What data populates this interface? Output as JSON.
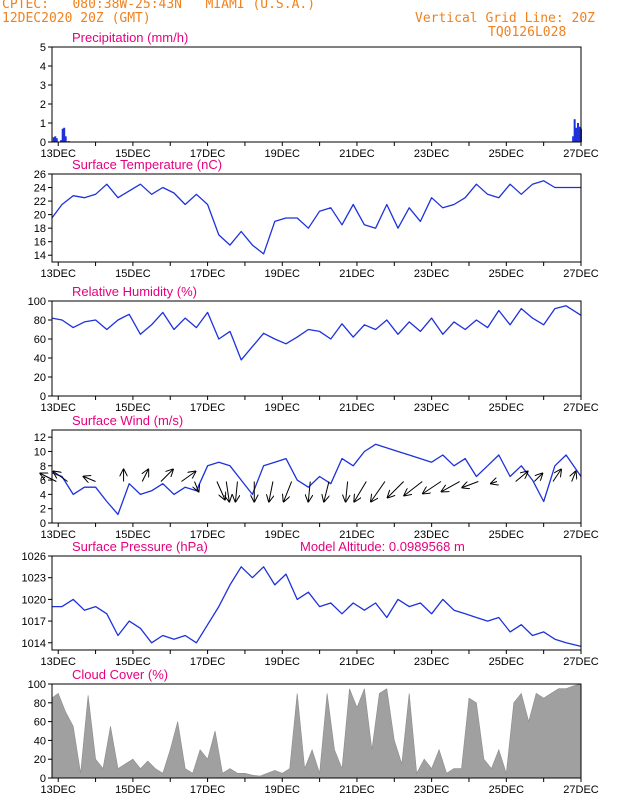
{
  "header": {
    "line1_left": "CPTEC:   080:38W-25:43N   MIAMI (U.S.A.)",
    "line2_left": "12DEC2020 20Z (GMT)",
    "line1_right": "Vertical Grid Line: 20Z",
    "line2_right": "TQ0126L028"
  },
  "colors": {
    "header": "#f0821e",
    "title": "#e6007e",
    "series": "#1e32dc",
    "cloud": "#a0a0a0"
  },
  "x_axis": {
    "tick_labels": [
      "13DEC",
      "15DEC",
      "17DEC",
      "19DEC",
      "21DEC",
      "23DEC",
      "25DEC",
      "27DEC"
    ],
    "range_days": [
      12.8333,
      27.0
    ]
  },
  "chart_data": [
    {
      "type": "bar",
      "title": "Precipitation (mm/h)",
      "ylim": [
        0,
        5
      ],
      "yticks": [
        "0",
        "1",
        "2",
        "3",
        "4",
        "5"
      ],
      "x": [
        12.88,
        12.92,
        12.96,
        13.08,
        13.12,
        13.16,
        13.2,
        13.28,
        26.79,
        26.83,
        26.87,
        26.92,
        26.96,
        27.0
      ],
      "values": [
        0.25,
        0.3,
        0.2,
        0.1,
        0.7,
        0.75,
        0.3,
        0.05,
        0.3,
        1.2,
        0.75,
        1.0,
        0.8,
        0.7
      ]
    },
    {
      "type": "line",
      "title": "Surface Temperature (nC)",
      "ylim": [
        13,
        26
      ],
      "yticks": [
        "14",
        "16",
        "18",
        "20",
        "22",
        "24",
        "26"
      ],
      "x": [
        12.83,
        13.1,
        13.4,
        13.7,
        14.0,
        14.3,
        14.6,
        14.9,
        15.2,
        15.5,
        15.8,
        16.1,
        16.4,
        16.7,
        17.0,
        17.3,
        17.6,
        17.9,
        18.2,
        18.5,
        18.8,
        19.1,
        19.4,
        19.7,
        20.0,
        20.3,
        20.6,
        20.9,
        21.2,
        21.5,
        21.8,
        22.1,
        22.4,
        22.7,
        23.0,
        23.3,
        23.6,
        23.9,
        24.2,
        24.5,
        24.8,
        25.1,
        25.4,
        25.7,
        26.0,
        26.3,
        26.6,
        27.0
      ],
      "values": [
        19.5,
        21.5,
        22.8,
        22.5,
        23,
        24.5,
        22.5,
        23.5,
        24.5,
        23,
        24,
        23.2,
        21.5,
        23,
        21.5,
        17,
        15.5,
        17.5,
        15.5,
        14.2,
        19,
        19.5,
        19.5,
        18,
        20.5,
        21,
        18.5,
        21.5,
        18.5,
        18,
        21.5,
        18,
        21,
        19,
        22.5,
        21,
        21.5,
        22.5,
        24.5,
        23,
        22.5,
        24.5,
        23,
        24.5,
        25,
        24,
        24,
        24
      ]
    },
    {
      "type": "line",
      "title": "Relative Humidity (%)",
      "ylim": [
        0,
        100
      ],
      "yticks": [
        "0",
        "20",
        "40",
        "60",
        "80",
        "100"
      ],
      "x": [
        12.83,
        13.1,
        13.4,
        13.7,
        14.0,
        14.3,
        14.6,
        14.9,
        15.2,
        15.5,
        15.8,
        16.1,
        16.4,
        16.7,
        17.0,
        17.3,
        17.6,
        17.9,
        18.2,
        18.5,
        18.8,
        19.1,
        19.4,
        19.7,
        20.0,
        20.3,
        20.6,
        20.9,
        21.2,
        21.5,
        21.8,
        22.1,
        22.4,
        22.7,
        23.0,
        23.3,
        23.6,
        23.9,
        24.2,
        24.5,
        24.8,
        25.1,
        25.4,
        25.7,
        26.0,
        26.3,
        26.6,
        27.0
      ],
      "values": [
        82,
        80,
        72,
        78,
        80,
        70,
        80,
        86,
        65,
        75,
        88,
        70,
        82,
        72,
        88,
        60,
        68,
        38,
        52,
        66,
        60,
        55,
        62,
        70,
        68,
        60,
        76,
        62,
        75,
        70,
        80,
        65,
        78,
        68,
        82,
        65,
        78,
        70,
        80,
        72,
        90,
        75,
        92,
        82,
        75,
        92,
        95,
        85
      ]
    },
    {
      "type": "line",
      "title": "Surface Wind (m/s)",
      "ylim": [
        0,
        13
      ],
      "yticks": [
        "0",
        "2",
        "4",
        "6",
        "8",
        "10",
        "12"
      ],
      "x": [
        12.83,
        13.1,
        13.4,
        13.7,
        14.0,
        14.3,
        14.6,
        14.9,
        15.2,
        15.5,
        15.8,
        16.1,
        16.4,
        16.7,
        17.0,
        17.3,
        17.6,
        17.9,
        18.2,
        18.5,
        18.8,
        19.1,
        19.4,
        19.7,
        20.0,
        20.3,
        20.6,
        20.9,
        21.2,
        21.5,
        21.8,
        22.1,
        22.4,
        22.7,
        23.0,
        23.3,
        23.6,
        23.9,
        24.2,
        24.5,
        24.8,
        25.1,
        25.4,
        25.7,
        26.0,
        26.3,
        26.6,
        27.0
      ],
      "values": [
        7,
        6.5,
        4,
        5,
        5,
        3,
        1.2,
        5.5,
        4,
        4.5,
        5.5,
        4,
        5,
        4.5,
        8,
        8.5,
        8,
        6,
        4,
        8,
        8.5,
        9,
        6,
        5,
        6.5,
        5.5,
        9,
        8,
        10,
        11,
        10.5,
        10,
        9.5,
        9,
        8.5,
        9.5,
        8,
        9,
        6.5,
        8,
        9.5,
        6.5,
        8,
        6,
        3,
        8,
        9.5,
        6.5
      ],
      "vectors": [
        {
          "x": 13.25,
          "dx": -0.7,
          "dy": 0.5
        },
        {
          "x": 14.0,
          "dx": -0.6,
          "dy": 0.25
        },
        {
          "x": 14.75,
          "dx": 0,
          "dy": 0.6
        },
        {
          "x": 15.25,
          "dx": 0.3,
          "dy": 0.6
        },
        {
          "x": 15.75,
          "dx": 0.6,
          "dy": 0.6
        },
        {
          "x": 16.3,
          "dx": 0.7,
          "dy": 0.5
        },
        {
          "x": 16.65,
          "dx": 0.2,
          "dy": -0.5
        },
        {
          "x": 17.25,
          "dx": 0.4,
          "dy": -0.9
        },
        {
          "x": 17.5,
          "dx": 0.15,
          "dy": -1.0
        },
        {
          "x": 17.8,
          "dx": -0.1,
          "dy": -1.0
        },
        {
          "x": 18.25,
          "dx": 0,
          "dy": -1.0
        },
        {
          "x": 18.75,
          "dx": -0.2,
          "dy": -1.0
        },
        {
          "x": 19.25,
          "dx": -0.4,
          "dy": -1.0
        },
        {
          "x": 19.75,
          "dx": -0.1,
          "dy": -1.0
        },
        {
          "x": 20.25,
          "dx": -0.25,
          "dy": -1.0
        },
        {
          "x": 20.75,
          "dx": -0.1,
          "dy": -1.0
        },
        {
          "x": 21.25,
          "dx": -0.6,
          "dy": -1.0
        },
        {
          "x": 21.75,
          "dx": -0.7,
          "dy": -1.0
        },
        {
          "x": 22.25,
          "dx": -0.8,
          "dy": -0.8
        },
        {
          "x": 22.75,
          "dx": -0.9,
          "dy": -0.7
        },
        {
          "x": 23.25,
          "dx": -0.9,
          "dy": -0.6
        },
        {
          "x": 23.75,
          "dx": -0.9,
          "dy": -0.5
        },
        {
          "x": 24.25,
          "dx": -0.8,
          "dy": -0.3
        },
        {
          "x": 24.75,
          "dx": -0.3,
          "dy": -0.1
        },
        {
          "x": 25.25,
          "dx": 0.6,
          "dy": 0.5
        },
        {
          "x": 25.75,
          "dx": 0.4,
          "dy": 0.4
        },
        {
          "x": 26.25,
          "dx": 0.4,
          "dy": 0.6
        },
        {
          "x": 26.75,
          "dx": 0.2,
          "dy": 0.5
        },
        {
          "x": 12.95,
          "dx": -0.8,
          "dy": 0.4
        }
      ]
    },
    {
      "type": "line",
      "title": "Surface Pressure (hPa)",
      "annotation": "Model Altitude: 0.0989568 m",
      "ylim": [
        1013,
        1026
      ],
      "yticks": [
        "1014",
        "1017",
        "1020",
        "1023",
        "1026"
      ],
      "x": [
        12.83,
        13.1,
        13.4,
        13.7,
        14.0,
        14.3,
        14.6,
        14.9,
        15.2,
        15.5,
        15.8,
        16.1,
        16.4,
        16.7,
        17.0,
        17.3,
        17.6,
        17.9,
        18.2,
        18.5,
        18.8,
        19.1,
        19.4,
        19.7,
        20.0,
        20.3,
        20.6,
        20.9,
        21.2,
        21.5,
        21.8,
        22.1,
        22.4,
        22.7,
        23.0,
        23.3,
        23.6,
        23.9,
        24.2,
        24.5,
        24.8,
        25.1,
        25.4,
        25.7,
        26.0,
        26.3,
        26.6,
        27.0
      ],
      "values": [
        1019,
        1019,
        1020,
        1018.5,
        1019,
        1018,
        1015,
        1017,
        1016,
        1014,
        1015,
        1014.5,
        1015,
        1014,
        1016.5,
        1019,
        1022,
        1024.5,
        1023,
        1024.5,
        1022,
        1023.5,
        1020,
        1021,
        1019,
        1019.5,
        1018,
        1019.5,
        1018.5,
        1019.5,
        1017.5,
        1020,
        1019,
        1019.5,
        1018,
        1020,
        1018.5,
        1018,
        1017.5,
        1017,
        1017.5,
        1015.5,
        1016.5,
        1015,
        1015.5,
        1014.5,
        1014,
        1013.5
      ]
    },
    {
      "type": "area",
      "title": "Cloud Cover (%)",
      "ylim": [
        0,
        100
      ],
      "yticks": [
        "0",
        "20",
        "40",
        "60",
        "80",
        "100"
      ],
      "x": [
        12.83,
        13.0,
        13.2,
        13.4,
        13.6,
        13.8,
        14.0,
        14.2,
        14.4,
        14.6,
        14.8,
        15.0,
        15.2,
        15.4,
        15.6,
        15.8,
        16.0,
        16.2,
        16.4,
        16.6,
        16.8,
        17.0,
        17.2,
        17.4,
        17.6,
        17.8,
        18.0,
        18.2,
        18.4,
        18.6,
        18.8,
        19.0,
        19.2,
        19.4,
        19.6,
        19.8,
        20.0,
        20.2,
        20.4,
        20.6,
        20.8,
        21.0,
        21.2,
        21.4,
        21.6,
        21.8,
        22.0,
        22.2,
        22.4,
        22.6,
        22.8,
        23.0,
        23.2,
        23.4,
        23.6,
        23.8,
        24.0,
        24.2,
        24.4,
        24.6,
        24.8,
        25.0,
        25.2,
        25.4,
        25.6,
        25.8,
        26.0,
        26.2,
        26.4,
        26.6,
        26.8,
        27.0
      ],
      "values": [
        85,
        90,
        70,
        55,
        5,
        88,
        20,
        10,
        55,
        10,
        15,
        20,
        10,
        18,
        10,
        5,
        30,
        60,
        10,
        5,
        30,
        20,
        50,
        5,
        10,
        5,
        5,
        3,
        2,
        5,
        8,
        5,
        10,
        90,
        10,
        30,
        5,
        90,
        30,
        10,
        95,
        75,
        95,
        30,
        90,
        95,
        40,
        15,
        90,
        5,
        20,
        10,
        30,
        5,
        10,
        10,
        85,
        80,
        20,
        10,
        30,
        5,
        80,
        90,
        60,
        90,
        85,
        90,
        95,
        95,
        98,
        100
      ]
    }
  ]
}
